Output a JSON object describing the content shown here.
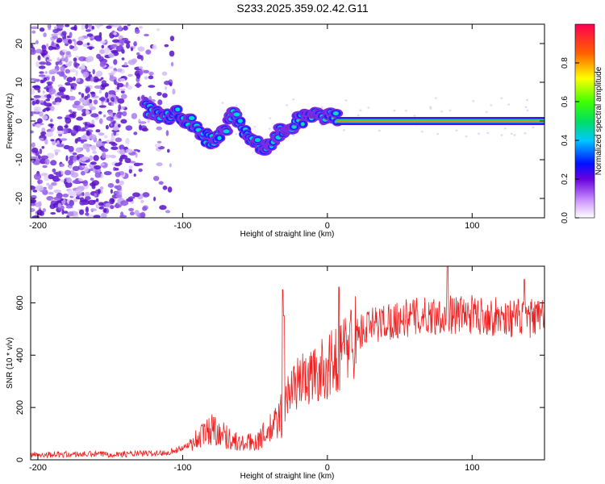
{
  "title": "S233.2025.359.02.42.G11",
  "colors": {
    "snr_line": "#ee2222",
    "spectrogram_dark": "#5a00b4",
    "spectrogram_light": "#d8c4f5",
    "tone_center": "#ee3030",
    "frame": "#000000"
  },
  "chart_data": [
    {
      "type": "heatmap",
      "name": "spectrogram",
      "title": "S233.2025.359.02.42.G11",
      "xlabel": "Height of straight line (km)",
      "ylabel": "Frequency (Hz)",
      "xlim": [
        -205,
        150
      ],
      "ylim": [
        -25,
        25
      ],
      "xticks": [
        -200,
        -100,
        0,
        100
      ],
      "yticks": [
        -20,
        -10,
        0,
        10,
        20
      ],
      "tone_trace": {
        "x": [
          -125,
          -118,
          -110,
          -103,
          -96,
          -90,
          -85,
          -80,
          -75,
          -70,
          -65,
          -60,
          -55,
          -50,
          -45,
          -40,
          -35,
          -30,
          -25,
          -20,
          -15,
          -10,
          -5,
          0,
          5,
          10,
          20,
          40,
          60,
          80,
          100,
          120,
          150
        ],
        "y": [
          3,
          2,
          1,
          2,
          0,
          -2,
          -4,
          -5,
          -4,
          -2,
          2,
          -1,
          -4,
          -5,
          -7,
          -6,
          -4,
          -2,
          -1,
          0,
          1,
          2,
          1,
          2,
          1,
          0,
          0,
          0,
          0,
          0,
          0,
          0,
          0
        ]
      },
      "colorbar": {
        "label": "Normalized spectral amplitude",
        "range": [
          0,
          1
        ],
        "ticks": [
          "0.0",
          "0.2",
          "0.4",
          "0.6",
          "0.8"
        ],
        "tick_values": [
          0.0,
          0.2,
          0.4,
          0.6,
          0.8
        ]
      }
    },
    {
      "type": "line",
      "name": "snr",
      "xlabel": "Height of straight line (km)",
      "ylabel": "SNR (10 * v/v)",
      "xlim": [
        -205,
        150
      ],
      "ylim": [
        0,
        740
      ],
      "xticks": [
        -200,
        -100,
        0,
        100
      ],
      "yticks": [
        0,
        200,
        400,
        600
      ],
      "series": [
        {
          "name": "SNR",
          "trend": {
            "x": [
              -205,
              -140,
              -115,
              -105,
              -95,
              -85,
              -80,
              -75,
              -70,
              -60,
              -50,
              -40,
              -34,
              -30,
              -28,
              -25,
              -20,
              -10,
              -5,
              0,
              5,
              10,
              15,
              20,
              30,
              40,
              60,
              80,
              100,
              120,
              140,
              150
            ],
            "y": [
              20,
              22,
              25,
              35,
              60,
              100,
              120,
              110,
              90,
              60,
              70,
              110,
              150,
              190,
              240,
              270,
              300,
              320,
              340,
              350,
              380,
              410,
              450,
              480,
              510,
              530,
              545,
              555,
              555,
              545,
              540,
              540
            ]
          },
          "spikes": [
            {
              "x": -31,
              "y": 650
            },
            {
              "x": -30,
              "y": 550
            },
            {
              "x": 8,
              "y": 660
            },
            {
              "x": 83,
              "y": 740
            },
            {
              "x": 136,
              "y": 690
            }
          ]
        }
      ]
    }
  ]
}
